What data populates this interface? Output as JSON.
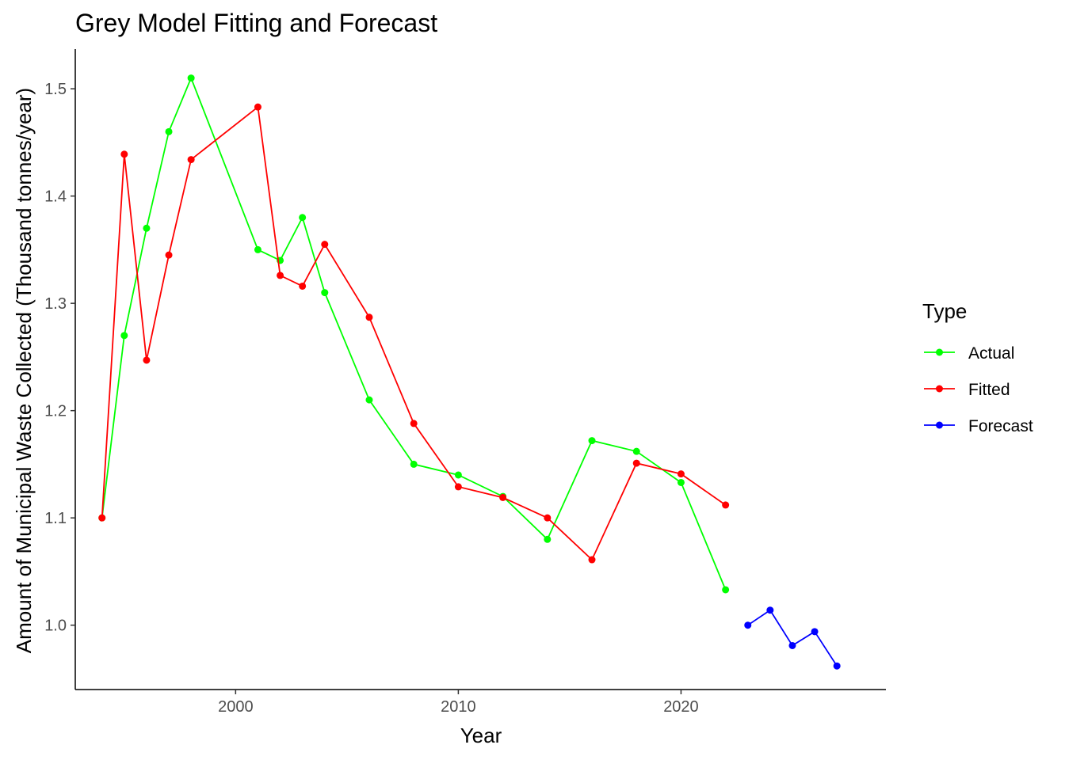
{
  "chart_data": {
    "type": "line",
    "title": "Grey Model Fitting and Forecast",
    "xlabel": "Year",
    "ylabel": "Amount of Municipal Waste Collected (Thousand tonnes/year)",
    "xlim": [
      1992.8,
      2029.2
    ],
    "ylim": [
      0.94,
      1.537
    ],
    "x_ticks": [
      2000,
      2010,
      2020
    ],
    "y_ticks": [
      1.0,
      1.1,
      1.2,
      1.3,
      1.4,
      1.5
    ],
    "grid": false,
    "legend": {
      "title": "Type",
      "position": "right",
      "entries": [
        "Actual",
        "Fitted",
        "Forecast"
      ]
    },
    "series": [
      {
        "name": "Actual",
        "color": "#00ff00",
        "x": [
          1994,
          1995,
          1996,
          1997,
          1998,
          2001,
          2002,
          2003,
          2004,
          2006,
          2008,
          2010,
          2012,
          2014,
          2016,
          2018,
          2020,
          2022
        ],
        "y": [
          1.1,
          1.27,
          1.37,
          1.46,
          1.51,
          1.35,
          1.34,
          1.38,
          1.31,
          1.21,
          1.15,
          1.14,
          1.12,
          1.08,
          1.172,
          1.162,
          1.133,
          1.033
        ]
      },
      {
        "name": "Fitted",
        "color": "#ff0000",
        "x": [
          1994,
          1995,
          1996,
          1997,
          1998,
          2001,
          2002,
          2003,
          2004,
          2006,
          2008,
          2010,
          2012,
          2014,
          2016,
          2018,
          2020,
          2022
        ],
        "y": [
          1.1,
          1.439,
          1.247,
          1.345,
          1.434,
          1.483,
          1.326,
          1.316,
          1.355,
          1.287,
          1.188,
          1.129,
          1.119,
          1.1,
          1.061,
          1.151,
          1.141,
          1.112
        ]
      },
      {
        "name": "Forecast",
        "color": "#0000ff",
        "x": [
          2023,
          2024,
          2025,
          2026,
          2027
        ],
        "y": [
          1.0,
          1.014,
          0.981,
          0.994,
          0.962
        ]
      }
    ]
  }
}
